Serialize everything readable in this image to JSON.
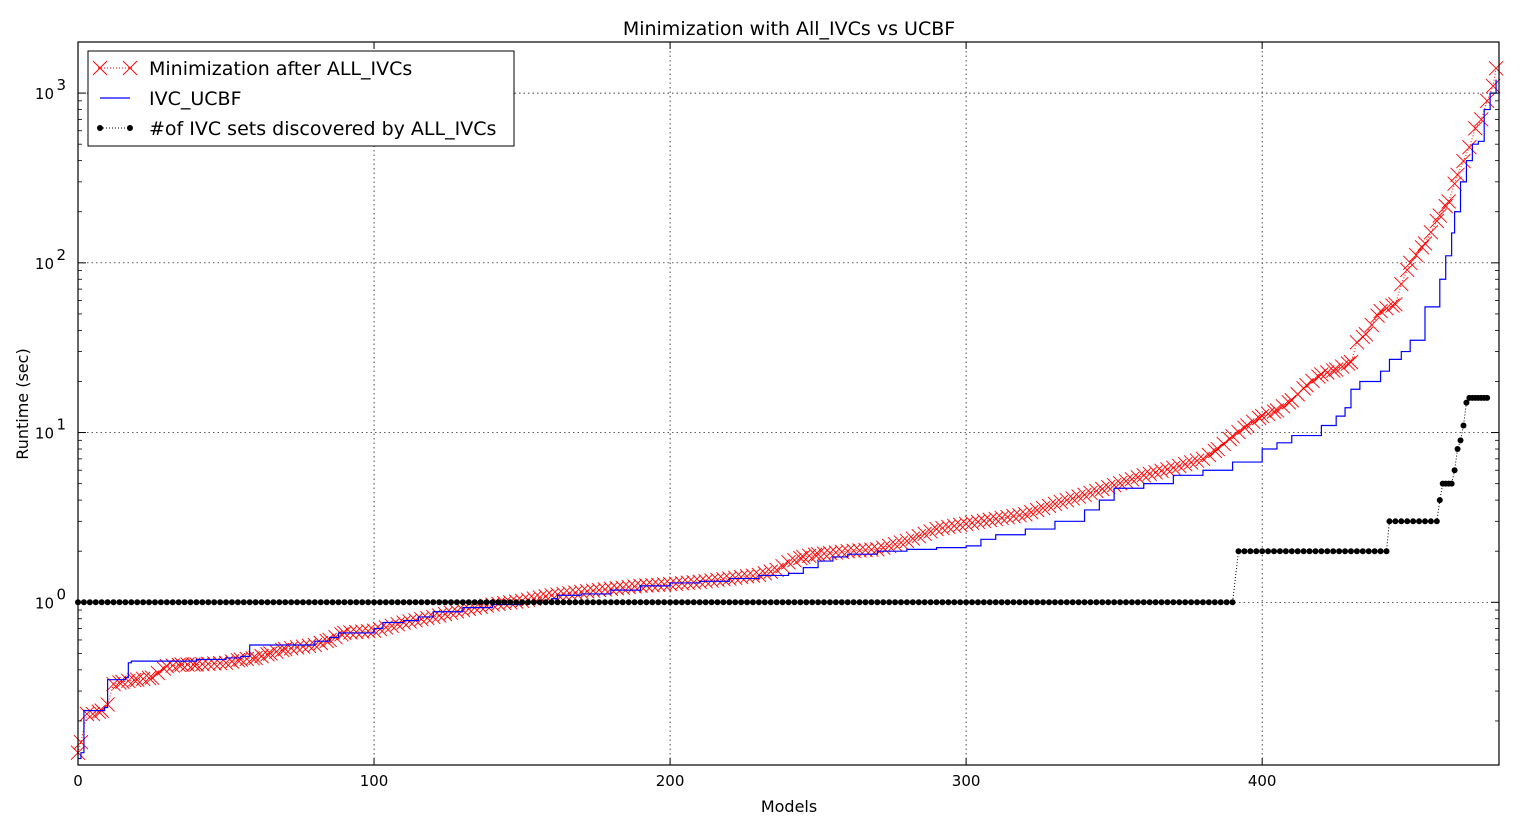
{
  "chart_data": {
    "type": "line",
    "title": "Minimization with All_IVCs vs UCBF",
    "xlabel": "Models",
    "ylabel": "Runtime (sec)",
    "xlim": [
      0,
      480
    ],
    "ylim": [
      0.11,
      2000
    ],
    "yscale": "log",
    "grid": true,
    "legend_position": "top-left",
    "xticks": [
      0,
      100,
      200,
      300,
      400
    ],
    "yticks": [
      1,
      10,
      100,
      1000
    ],
    "xtick_labels": [
      "0",
      "100",
      "200",
      "300",
      "400"
    ],
    "ytick_labels": [
      {
        "base": "10",
        "exp": "0"
      },
      {
        "base": "10",
        "exp": "1"
      },
      {
        "base": "10",
        "exp": "2"
      },
      {
        "base": "10",
        "exp": "3"
      }
    ],
    "series": [
      {
        "name": "Minimization after ALL_IVCs",
        "color": "#ff0000",
        "marker": "x",
        "line": "dotted",
        "points": [
          [
            0,
            0.13
          ],
          [
            1,
            0.15
          ],
          [
            3,
            0.22
          ],
          [
            5,
            0.22
          ],
          [
            8,
            0.23
          ],
          [
            10,
            0.25
          ],
          [
            12,
            0.33
          ],
          [
            15,
            0.34
          ],
          [
            20,
            0.35
          ],
          [
            25,
            0.36
          ],
          [
            30,
            0.42
          ],
          [
            35,
            0.43
          ],
          [
            40,
            0.43
          ],
          [
            50,
            0.44
          ],
          [
            55,
            0.46
          ],
          [
            60,
            0.47
          ],
          [
            65,
            0.5
          ],
          [
            70,
            0.53
          ],
          [
            80,
            0.56
          ],
          [
            85,
            0.6
          ],
          [
            90,
            0.66
          ],
          [
            100,
            0.68
          ],
          [
            110,
            0.76
          ],
          [
            120,
            0.82
          ],
          [
            130,
            0.9
          ],
          [
            140,
            0.97
          ],
          [
            150,
            1.02
          ],
          [
            160,
            1.1
          ],
          [
            170,
            1.15
          ],
          [
            180,
            1.2
          ],
          [
            190,
            1.25
          ],
          [
            200,
            1.28
          ],
          [
            210,
            1.32
          ],
          [
            220,
            1.38
          ],
          [
            230,
            1.45
          ],
          [
            236,
            1.55
          ],
          [
            240,
            1.72
          ],
          [
            245,
            1.85
          ],
          [
            250,
            1.92
          ],
          [
            260,
            2.0
          ],
          [
            270,
            2.05
          ],
          [
            280,
            2.3
          ],
          [
            290,
            2.7
          ],
          [
            300,
            2.9
          ],
          [
            310,
            3.1
          ],
          [
            320,
            3.3
          ],
          [
            330,
            3.8
          ],
          [
            340,
            4.3
          ],
          [
            350,
            4.9
          ],
          [
            360,
            5.6
          ],
          [
            370,
            6.2
          ],
          [
            380,
            7.0
          ],
          [
            385,
            8.0
          ],
          [
            390,
            9.5
          ],
          [
            395,
            11.0
          ],
          [
            400,
            12.5
          ],
          [
            405,
            13.5
          ],
          [
            410,
            15.5
          ],
          [
            415,
            19.0
          ],
          [
            420,
            22.0
          ],
          [
            425,
            23.5
          ],
          [
            430,
            26.0
          ],
          [
            432,
            34.0
          ],
          [
            435,
            38.0
          ],
          [
            440,
            52.0
          ],
          [
            445,
            57.0
          ],
          [
            447,
            75.0
          ],
          [
            450,
            100.0
          ],
          [
            455,
            130.0
          ],
          [
            460,
            190.0
          ],
          [
            463,
            230.0
          ],
          [
            466,
            330.0
          ],
          [
            470,
            480.0
          ],
          [
            472,
            620.0
          ],
          [
            474,
            700.0
          ],
          [
            476,
            900.0
          ],
          [
            478,
            1100.0
          ],
          [
            479,
            1400.0
          ]
        ]
      },
      {
        "name": "IVC_UCBF",
        "color": "#0000ff",
        "marker": "none",
        "line": "solid",
        "points": [
          [
            0,
            0.12
          ],
          [
            1,
            0.13
          ],
          [
            2,
            0.23
          ],
          [
            5,
            0.23
          ],
          [
            9,
            0.24
          ],
          [
            10,
            0.35
          ],
          [
            14,
            0.35
          ],
          [
            16,
            0.36
          ],
          [
            17,
            0.44
          ],
          [
            18,
            0.45
          ],
          [
            30,
            0.45
          ],
          [
            40,
            0.46
          ],
          [
            50,
            0.47
          ],
          [
            55,
            0.48
          ],
          [
            58,
            0.56
          ],
          [
            70,
            0.56
          ],
          [
            80,
            0.59
          ],
          [
            85,
            0.62
          ],
          [
            88,
            0.66
          ],
          [
            100,
            0.7
          ],
          [
            103,
            0.76
          ],
          [
            110,
            0.78
          ],
          [
            115,
            0.82
          ],
          [
            120,
            0.88
          ],
          [
            130,
            0.93
          ],
          [
            140,
            0.97
          ],
          [
            150,
            1.0
          ],
          [
            160,
            1.05
          ],
          [
            162,
            1.1
          ],
          [
            170,
            1.12
          ],
          [
            180,
            1.18
          ],
          [
            190,
            1.25
          ],
          [
            200,
            1.3
          ],
          [
            210,
            1.33
          ],
          [
            220,
            1.38
          ],
          [
            230,
            1.44
          ],
          [
            240,
            1.48
          ],
          [
            245,
            1.6
          ],
          [
            250,
            1.75
          ],
          [
            255,
            1.85
          ],
          [
            260,
            1.92
          ],
          [
            270,
            2.0
          ],
          [
            280,
            2.05
          ],
          [
            290,
            2.1
          ],
          [
            300,
            2.15
          ],
          [
            305,
            2.35
          ],
          [
            310,
            2.5
          ],
          [
            320,
            2.7
          ],
          [
            330,
            3.0
          ],
          [
            340,
            3.5
          ],
          [
            345,
            4.0
          ],
          [
            350,
            4.7
          ],
          [
            360,
            5.0
          ],
          [
            370,
            5.6
          ],
          [
            380,
            6.0
          ],
          [
            390,
            6.7
          ],
          [
            400,
            8.0
          ],
          [
            405,
            8.7
          ],
          [
            410,
            9.6
          ],
          [
            420,
            11.0
          ],
          [
            425,
            12.5
          ],
          [
            428,
            14.0
          ],
          [
            430,
            18.0
          ],
          [
            433,
            20.0
          ],
          [
            440,
            23.0
          ],
          [
            443,
            27.0
          ],
          [
            447,
            30.0
          ],
          [
            450,
            35.0
          ],
          [
            455,
            55.0
          ],
          [
            460,
            80.0
          ],
          [
            462,
            110.0
          ],
          [
            464,
            150.0
          ],
          [
            465,
            200.0
          ],
          [
            467,
            300.0
          ],
          [
            469,
            400.0
          ],
          [
            471,
            500.0
          ],
          [
            473,
            520.0
          ],
          [
            475,
            800.0
          ],
          [
            477,
            1000.0
          ],
          [
            479,
            1200.0
          ]
        ]
      },
      {
        "name": "#of IVC sets discovered by ALL_IVCs",
        "color": "#000000",
        "marker": "o",
        "line": "dotted",
        "segments": [
          {
            "x_start": 0,
            "x_end": 391,
            "y": 1
          },
          {
            "x_start": 392,
            "x_end": 442,
            "y": 2
          },
          {
            "x_start": 443,
            "x_end": 459,
            "y": 3
          }
        ],
        "points": [
          [
            460,
            4
          ],
          [
            461,
            5
          ],
          [
            462,
            5
          ],
          [
            463,
            5
          ],
          [
            464,
            5
          ],
          [
            465,
            6
          ],
          [
            466,
            8
          ],
          [
            467,
            9
          ],
          [
            468,
            11
          ],
          [
            469,
            15
          ],
          [
            470,
            16
          ],
          [
            471,
            16
          ],
          [
            472,
            16
          ],
          [
            473,
            16
          ],
          [
            474,
            16
          ],
          [
            475,
            16
          ],
          [
            476,
            16
          ]
        ]
      }
    ]
  }
}
